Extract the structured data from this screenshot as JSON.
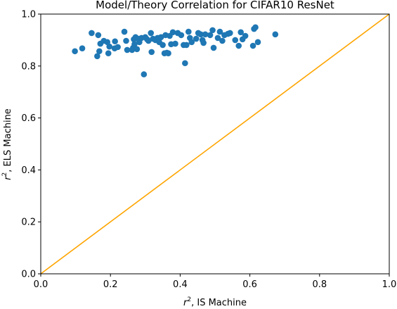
{
  "chart_data": {
    "type": "scatter",
    "title": "Model/Theory Correlation for CIFAR10 ResNet",
    "xlabel_main": "r",
    "xlabel_sup": "2",
    "xlabel_rest": ", IS Machine",
    "ylabel_main": "r",
    "ylabel_sup": "2",
    "ylabel_rest": ", ELS Machine",
    "xlim": [
      0.0,
      1.0
    ],
    "ylim": [
      0.0,
      1.0
    ],
    "xticks": [
      "0.0",
      "0.2",
      "0.4",
      "0.6",
      "0.8",
      "1.0"
    ],
    "yticks": [
      "0.0",
      "0.2",
      "0.4",
      "0.6",
      "0.8",
      "1.0"
    ],
    "grid": false,
    "series": [
      {
        "marker_color": "#1f77b4",
        "points": [
          {
            "x": 0.098,
            "y": 0.857
          },
          {
            "x": 0.119,
            "y": 0.868
          },
          {
            "x": 0.146,
            "y": 0.927
          },
          {
            "x": 0.162,
            "y": 0.838
          },
          {
            "x": 0.165,
            "y": 0.919
          },
          {
            "x": 0.168,
            "y": 0.857
          },
          {
            "x": 0.171,
            "y": 0.886
          },
          {
            "x": 0.181,
            "y": 0.897
          },
          {
            "x": 0.191,
            "y": 0.892
          },
          {
            "x": 0.194,
            "y": 0.849
          },
          {
            "x": 0.197,
            "y": 0.875
          },
          {
            "x": 0.212,
            "y": 0.868
          },
          {
            "x": 0.213,
            "y": 0.895
          },
          {
            "x": 0.221,
            "y": 0.873
          },
          {
            "x": 0.24,
            "y": 0.932
          },
          {
            "x": 0.245,
            "y": 0.897
          },
          {
            "x": 0.248,
            "y": 0.862
          },
          {
            "x": 0.262,
            "y": 0.862
          },
          {
            "x": 0.265,
            "y": 0.87
          },
          {
            "x": 0.267,
            "y": 0.903
          },
          {
            "x": 0.269,
            "y": 0.884
          },
          {
            "x": 0.272,
            "y": 0.911
          },
          {
            "x": 0.276,
            "y": 0.865
          },
          {
            "x": 0.279,
            "y": 0.905
          },
          {
            "x": 0.283,
            "y": 0.892
          },
          {
            "x": 0.289,
            "y": 0.908
          },
          {
            "x": 0.296,
            "y": 0.768
          },
          {
            "x": 0.3,
            "y": 0.911
          },
          {
            "x": 0.305,
            "y": 0.903
          },
          {
            "x": 0.309,
            "y": 0.897
          },
          {
            "x": 0.316,
            "y": 0.927
          },
          {
            "x": 0.318,
            "y": 0.854
          },
          {
            "x": 0.322,
            "y": 0.905
          },
          {
            "x": 0.329,
            "y": 0.9
          },
          {
            "x": 0.335,
            "y": 0.908
          },
          {
            "x": 0.34,
            "y": 0.892
          },
          {
            "x": 0.345,
            "y": 0.911
          },
          {
            "x": 0.35,
            "y": 0.881
          },
          {
            "x": 0.355,
            "y": 0.849
          },
          {
            "x": 0.358,
            "y": 0.919
          },
          {
            "x": 0.362,
            "y": 0.851
          },
          {
            "x": 0.366,
            "y": 0.849
          },
          {
            "x": 0.37,
            "y": 0.916
          },
          {
            "x": 0.374,
            "y": 0.884
          },
          {
            "x": 0.379,
            "y": 0.93
          },
          {
            "x": 0.386,
            "y": 0.886
          },
          {
            "x": 0.393,
            "y": 0.927
          },
          {
            "x": 0.403,
            "y": 0.919
          },
          {
            "x": 0.41,
            "y": 0.881
          },
          {
            "x": 0.414,
            "y": 0.811
          },
          {
            "x": 0.418,
            "y": 0.881
          },
          {
            "x": 0.424,
            "y": 0.932
          },
          {
            "x": 0.428,
            "y": 0.908
          },
          {
            "x": 0.433,
            "y": 0.892
          },
          {
            "x": 0.446,
            "y": 0.905
          },
          {
            "x": 0.452,
            "y": 0.927
          },
          {
            "x": 0.459,
            "y": 0.922
          },
          {
            "x": 0.464,
            "y": 0.9
          },
          {
            "x": 0.467,
            "y": 0.889
          },
          {
            "x": 0.472,
            "y": 0.922
          },
          {
            "x": 0.486,
            "y": 0.919
          },
          {
            "x": 0.493,
            "y": 0.938
          },
          {
            "x": 0.496,
            "y": 0.87
          },
          {
            "x": 0.508,
            "y": 0.908
          },
          {
            "x": 0.514,
            "y": 0.932
          },
          {
            "x": 0.521,
            "y": 0.897
          },
          {
            "x": 0.527,
            "y": 0.919
          },
          {
            "x": 0.537,
            "y": 0.924
          },
          {
            "x": 0.543,
            "y": 0.927
          },
          {
            "x": 0.558,
            "y": 0.9
          },
          {
            "x": 0.568,
            "y": 0.878
          },
          {
            "x": 0.574,
            "y": 0.93
          },
          {
            "x": 0.579,
            "y": 0.903
          },
          {
            "x": 0.587,
            "y": 0.916
          },
          {
            "x": 0.609,
            "y": 0.878
          },
          {
            "x": 0.612,
            "y": 0.943
          },
          {
            "x": 0.616,
            "y": 0.949
          },
          {
            "x": 0.623,
            "y": 0.892
          },
          {
            "x": 0.673,
            "y": 0.922
          }
        ]
      }
    ],
    "reference_line": {
      "x": [
        0.0,
        1.0
      ],
      "y": [
        0.0,
        1.0
      ],
      "color": "#ffa500"
    }
  }
}
